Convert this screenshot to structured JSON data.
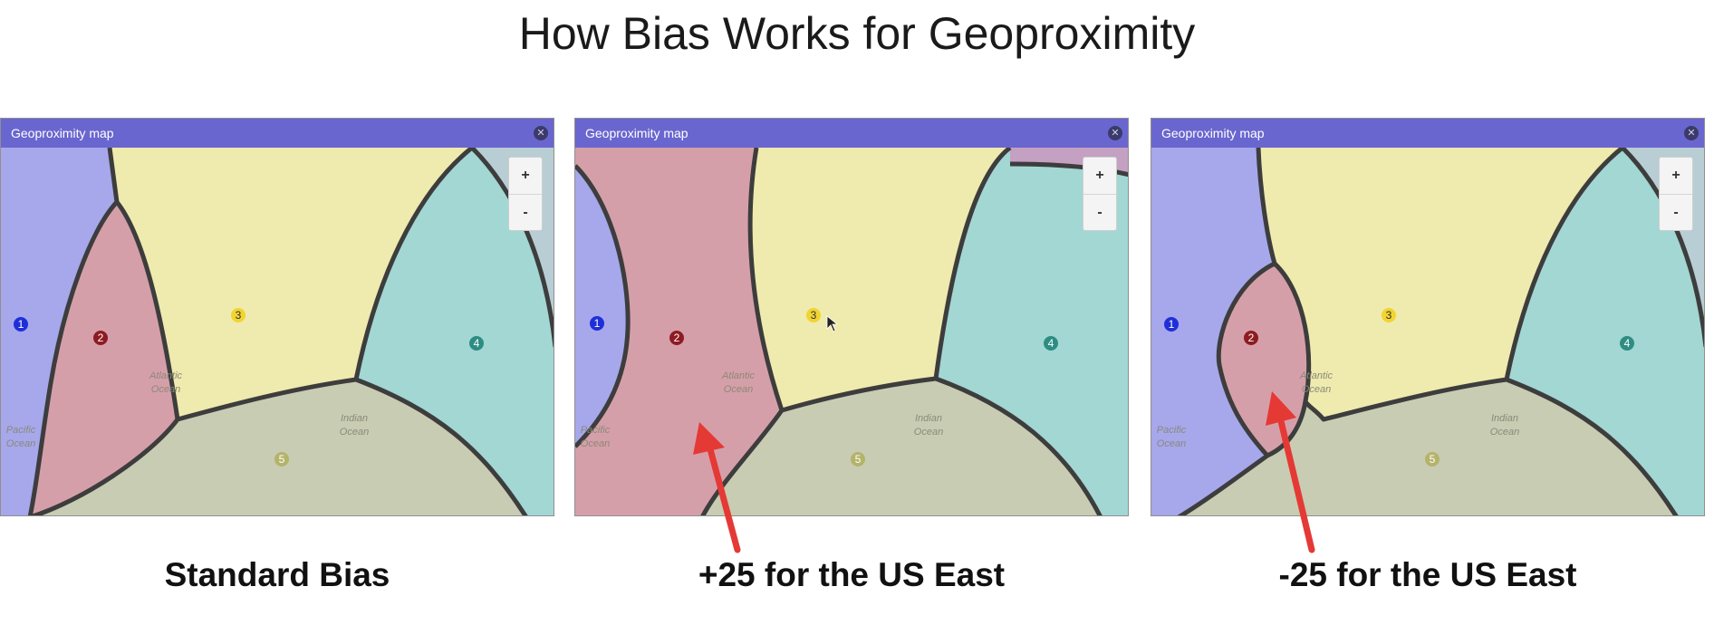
{
  "title": "How Bias Works for Geoproximity",
  "colors": {
    "titlebar": "#6a66cf",
    "region_1": "#a5a3ee",
    "region_2": "#d89aa4",
    "region_3": "#f3edaa",
    "region_4": "#9fd8d3",
    "region_5": "#c9ccb0",
    "arrow": "#e53935"
  },
  "panels": [
    {
      "window_title": "Geoproximity map",
      "close_icon": "close-icon",
      "zoom_in": "+",
      "zoom_out": "-",
      "caption": "Standard Bias",
      "markers": [
        "1",
        "2",
        "3",
        "4",
        "5"
      ]
    },
    {
      "window_title": "Geoproximity map",
      "close_icon": "close-icon",
      "zoom_in": "+",
      "zoom_out": "-",
      "caption": "+25 for the US East",
      "markers": [
        "1",
        "2",
        "3",
        "4",
        "5"
      ]
    },
    {
      "window_title": "Geoproximity map",
      "close_icon": "close-icon",
      "zoom_in": "+",
      "zoom_out": "-",
      "caption": "-25 for the US East",
      "markers": [
        "1",
        "2",
        "3",
        "4",
        "5"
      ]
    }
  ],
  "map_labels": {
    "atlantic": [
      "Atlantic",
      "Ocean"
    ],
    "pacific": [
      "Pacific",
      "Ocean"
    ],
    "indian": [
      "Indian",
      "Ocean"
    ]
  }
}
